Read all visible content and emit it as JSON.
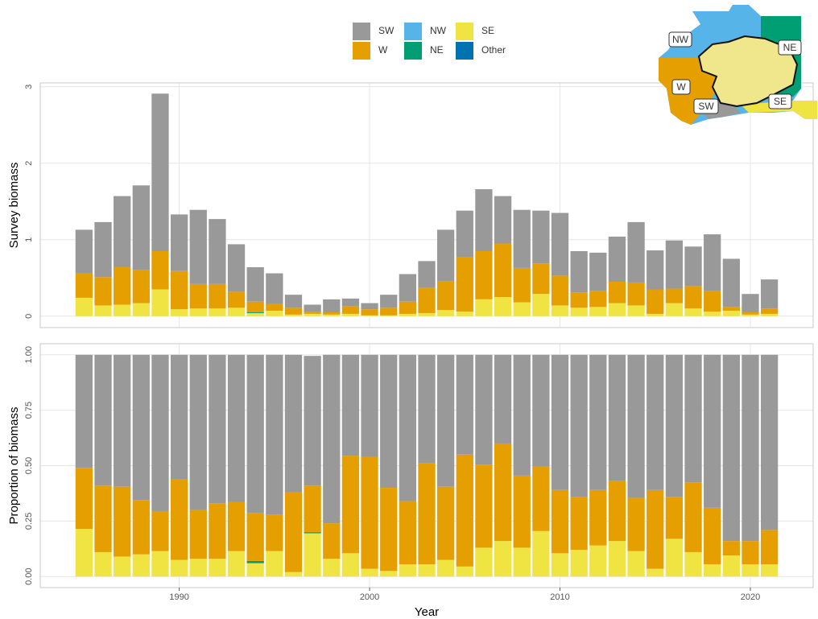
{
  "chart_data": [
    {
      "type": "stacked_bar",
      "ylabel": "Survey biomass",
      "x": [
        1985,
        1986,
        1987,
        1988,
        1989,
        1990,
        1991,
        1992,
        1993,
        1994,
        1995,
        1996,
        1997,
        1998,
        1999,
        2000,
        2001,
        2002,
        2003,
        2004,
        2005,
        2006,
        2007,
        2008,
        2009,
        2010,
        2011,
        2012,
        2013,
        2014,
        2015,
        2016,
        2017,
        2018,
        2019,
        2020,
        2021
      ],
      "xlim": [
        1982.7,
        2023.3
      ],
      "xticks": [
        1990,
        2000,
        2010,
        2020
      ],
      "ylim": [
        -0.15,
        3.05
      ],
      "yticks": [
        0,
        1,
        2,
        3
      ],
      "grid": true,
      "series": [
        {
          "name": "SW",
          "color": "#999999",
          "values": [
            0.57,
            0.72,
            0.93,
            1.11,
            2.06,
            0.74,
            0.97,
            0.85,
            0.62,
            0.45,
            0.4,
            0.17,
            0.09,
            0.17,
            0.1,
            0.08,
            0.17,
            0.36,
            0.35,
            0.67,
            0.61,
            0.81,
            0.62,
            0.76,
            0.69,
            0.82,
            0.54,
            0.5,
            0.59,
            0.79,
            0.51,
            0.63,
            0.52,
            0.74,
            0.63,
            0.24,
            0.38
          ]
        },
        {
          "name": "W",
          "color": "#E69F00",
          "values": [
            0.32,
            0.37,
            0.49,
            0.43,
            0.5,
            0.5,
            0.32,
            0.32,
            0.21,
            0.14,
            0.09,
            0.09,
            0.03,
            0.03,
            0.1,
            0.08,
            0.1,
            0.16,
            0.33,
            0.38,
            0.71,
            0.63,
            0.7,
            0.45,
            0.4,
            0.39,
            0.2,
            0.21,
            0.28,
            0.3,
            0.32,
            0.19,
            0.29,
            0.27,
            0.05,
            0.03,
            0.07
          ]
        },
        {
          "name": "NW",
          "color": "#56B4E9",
          "values": [
            0,
            0,
            0,
            0,
            0,
            0,
            0,
            0,
            0,
            0,
            0,
            0,
            0,
            0,
            0,
            0,
            0,
            0,
            0,
            0,
            0,
            0,
            0,
            0,
            0,
            0,
            0,
            0,
            0,
            0,
            0,
            0,
            0,
            0,
            0,
            0,
            0
          ]
        },
        {
          "name": "NE",
          "color": "#009E73",
          "values": [
            0,
            0,
            0,
            0,
            0,
            0,
            0,
            0,
            0,
            0.01,
            0,
            0,
            0,
            0,
            0,
            0,
            0,
            0,
            0,
            0,
            0,
            0,
            0,
            0,
            0,
            0,
            0,
            0,
            0,
            0,
            0,
            0,
            0,
            0,
            0,
            0,
            0
          ]
        },
        {
          "name": "SE",
          "color": "#F0E442",
          "values": [
            0.24,
            0.14,
            0.15,
            0.17,
            0.35,
            0.09,
            0.1,
            0.1,
            0.11,
            0.04,
            0.07,
            0.02,
            0.03,
            0.02,
            0.03,
            0.01,
            0.01,
            0.03,
            0.04,
            0.08,
            0.06,
            0.22,
            0.25,
            0.18,
            0.29,
            0.14,
            0.11,
            0.12,
            0.17,
            0.14,
            0.03,
            0.17,
            0.1,
            0.06,
            0.07,
            0.02,
            0.03
          ]
        },
        {
          "name": "Other",
          "color": "#0072B2",
          "values": [
            0,
            0,
            0,
            0,
            0,
            0,
            0,
            0,
            0,
            0,
            0,
            0,
            0,
            0,
            0,
            0,
            0,
            0,
            0,
            0,
            0,
            0,
            0,
            0,
            0,
            0,
            0,
            0,
            0,
            0,
            0,
            0,
            0,
            0,
            0,
            0,
            0
          ]
        }
      ]
    },
    {
      "type": "stacked_bar",
      "ylabel": "Proportion of biomass",
      "xlabel": "Year",
      "x": [
        1985,
        1986,
        1987,
        1988,
        1989,
        1990,
        1991,
        1992,
        1993,
        1994,
        1995,
        1996,
        1997,
        1998,
        1999,
        2000,
        2001,
        2002,
        2003,
        2004,
        2005,
        2006,
        2007,
        2008,
        2009,
        2010,
        2011,
        2012,
        2013,
        2014,
        2015,
        2016,
        2017,
        2018,
        2019,
        2020,
        2021
      ],
      "xlim": [
        1982.7,
        2023.3
      ],
      "xticks": [
        1990,
        2000,
        2010,
        2020
      ],
      "ylim": [
        -0.05,
        1.05
      ],
      "yticks": [
        {
          "value": 0,
          "label": "0.00"
        },
        {
          "value": 0.25,
          "label": "0.25"
        },
        {
          "value": 0.5,
          "label": "0.50"
        },
        {
          "value": 0.75,
          "label": "0.75"
        },
        {
          "value": 1,
          "label": "1.00"
        }
      ],
      "grid": true,
      "series": [
        {
          "color": "#999999",
          "values": [
            0.51,
            0.59,
            0.595,
            0.655,
            0.705,
            0.56,
            0.7,
            0.67,
            0.665,
            0.715,
            0.72,
            0.62,
            0.585,
            0.76,
            0.455,
            0.46,
            0.6,
            0.66,
            0.49,
            0.595,
            0.45,
            0.495,
            0.4,
            0.545,
            0.505,
            0.61,
            0.64,
            0.61,
            0.57,
            0.645,
            0.61,
            0.64,
            0.575,
            0.69,
            0.84,
            0.84,
            0.79
          ]
        },
        {
          "color": "#E69F00",
          "values": [
            0.275,
            0.3,
            0.315,
            0.245,
            0.18,
            0.365,
            0.22,
            0.25,
            0.22,
            0.215,
            0.165,
            0.36,
            0.21,
            0.16,
            0.44,
            0.505,
            0.375,
            0.285,
            0.455,
            0.33,
            0.505,
            0.375,
            0.44,
            0.325,
            0.29,
            0.285,
            0.24,
            0.25,
            0.27,
            0.24,
            0.355,
            0.19,
            0.315,
            0.255,
            0.065,
            0.105,
            0.155
          ]
        },
        {
          "color": "#56B4E9",
          "values": [
            0,
            0,
            0,
            0,
            0,
            0,
            0,
            0,
            0,
            0,
            0,
            0,
            0,
            0,
            0,
            0,
            0,
            0,
            0,
            0,
            0,
            0,
            0,
            0,
            0,
            0,
            0,
            0,
            0,
            0,
            0,
            0,
            0,
            0,
            0,
            0,
            0
          ]
        },
        {
          "color": "#009E73",
          "values": [
            0,
            0,
            0,
            0,
            0,
            0,
            0,
            0,
            0,
            0.01,
            0,
            0,
            0.005,
            0,
            0,
            0,
            0,
            0,
            0,
            0,
            0,
            0,
            0,
            0,
            0,
            0,
            0,
            0,
            0,
            0,
            0,
            0,
            0,
            0,
            0,
            0,
            0
          ]
        },
        {
          "color": "#F0E442",
          "values": [
            0.215,
            0.11,
            0.09,
            0.1,
            0.115,
            0.075,
            0.08,
            0.08,
            0.115,
            0.06,
            0.115,
            0.02,
            0.195,
            0.08,
            0.105,
            0.035,
            0.025,
            0.055,
            0.055,
            0.075,
            0.045,
            0.13,
            0.16,
            0.13,
            0.205,
            0.105,
            0.12,
            0.14,
            0.16,
            0.115,
            0.035,
            0.17,
            0.11,
            0.055,
            0.095,
            0.055,
            0.055
          ]
        },
        {
          "color": "#0072B2",
          "values": [
            0,
            0,
            0,
            0,
            0,
            0,
            0,
            0,
            0,
            0,
            0,
            0,
            0,
            0,
            0,
            0,
            0,
            0,
            0,
            0,
            0,
            0,
            0,
            0,
            0,
            0,
            0,
            0,
            0,
            0,
            0,
            0,
            0,
            0,
            0,
            0,
            0
          ]
        }
      ]
    }
  ],
  "map": {
    "labels": [
      "NW",
      "NE",
      "W",
      "SW",
      "SE"
    ]
  }
}
